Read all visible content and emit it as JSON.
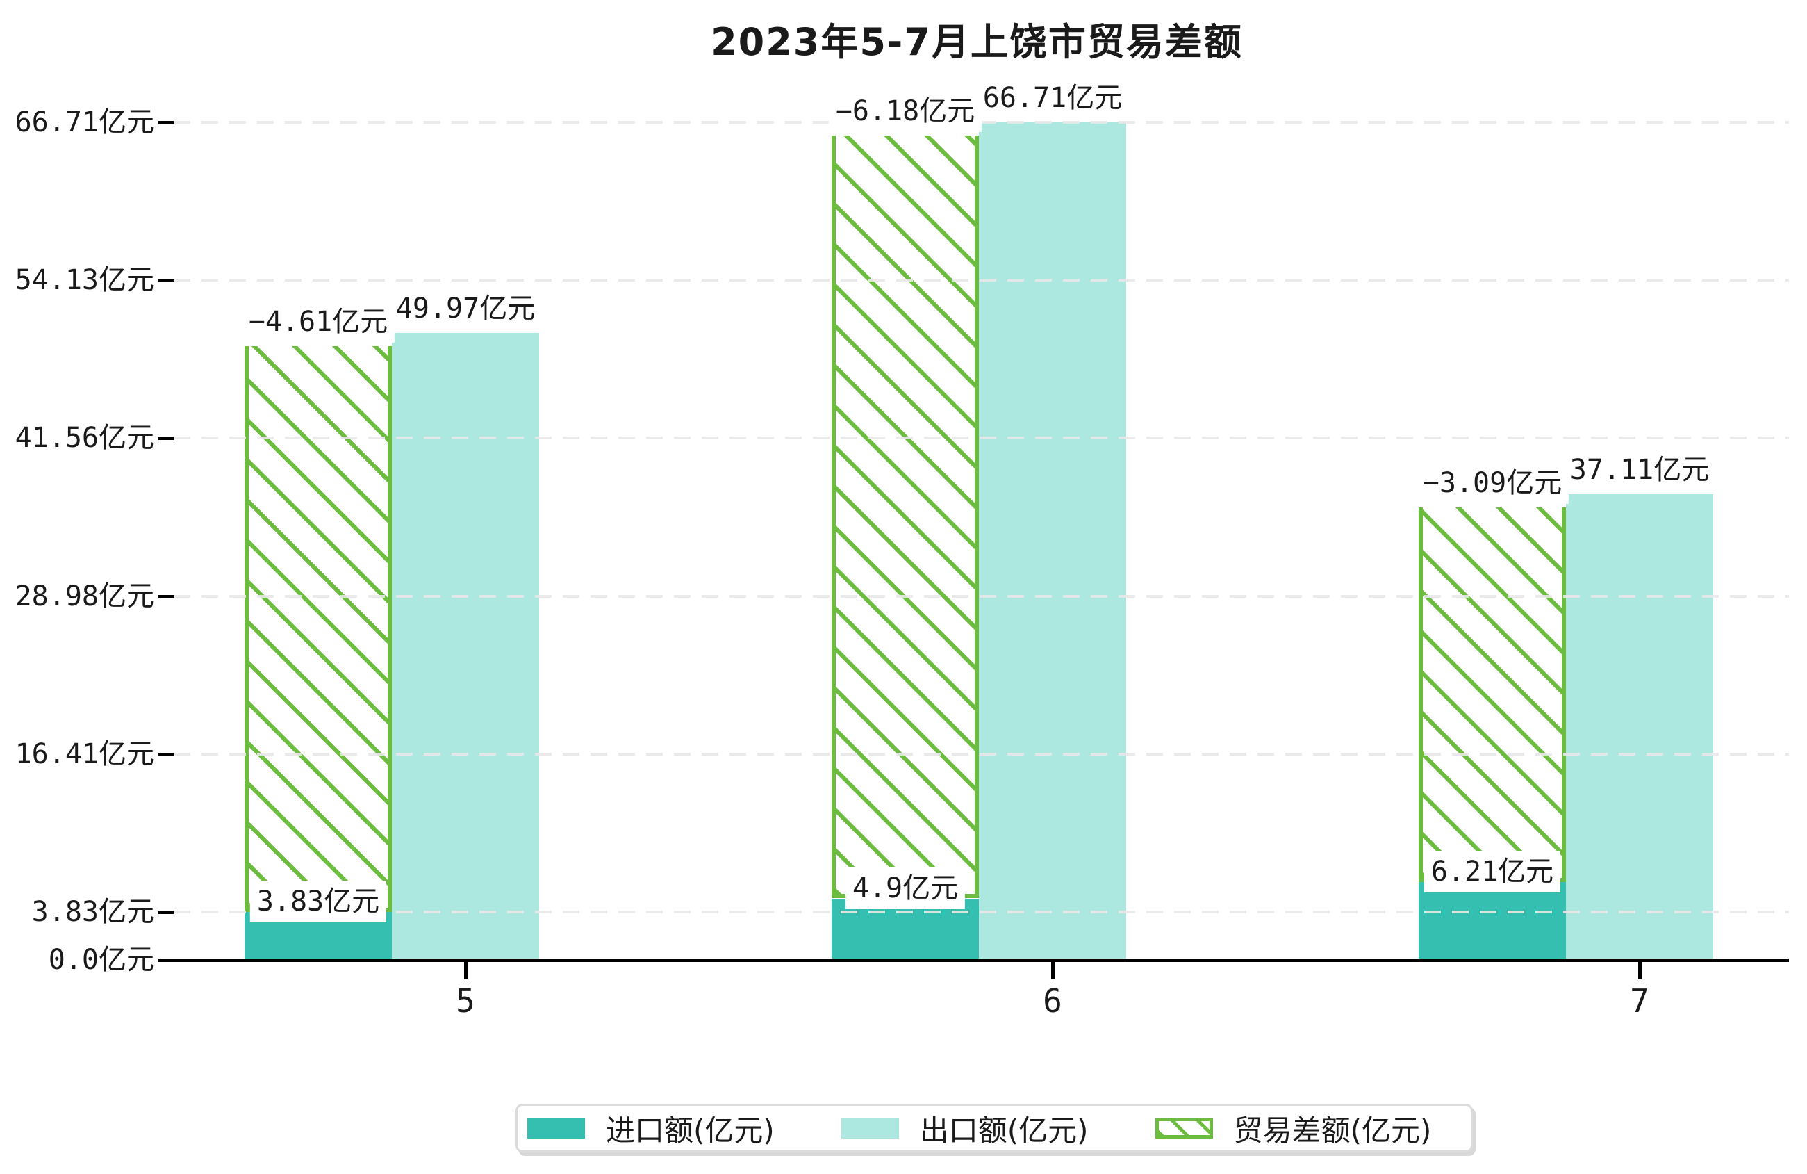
{
  "colors": {
    "import": "#34bfb0",
    "export": "#ace8e0",
    "balance": "#6cbd3f",
    "grid": "#e8e8e8",
    "axis": "#000000",
    "label_text": "#1a1a1a",
    "legend_border": "#dcdcdc"
  },
  "chart_data": {
    "type": "bar",
    "title": "2023年5-7月上饶市贸易差额",
    "categories": [
      "5",
      "6",
      "7"
    ],
    "series": [
      {
        "role": "import",
        "name": "进口额(亿元)",
        "values": [
          3.83,
          4.9,
          6.21
        ],
        "data_labels": [
          "3.83亿元",
          "4.9亿元",
          "6.21亿元"
        ]
      },
      {
        "role": "export",
        "name": "出口额(亿元)",
        "values": [
          49.97,
          66.71,
          37.11
        ],
        "data_labels": [
          "49.97亿元",
          "66.71亿元",
          "37.11亿元"
        ]
      },
      {
        "role": "balance",
        "name": "贸易差额(亿元)",
        "values": [
          -4.61,
          -6.18,
          -3.09
        ],
        "data_labels": [
          "−4.61亿元",
          "−6.18亿元",
          "−3.09亿元"
        ]
      }
    ],
    "y_axis": {
      "range": [
        0,
        66.71
      ],
      "ticks": [
        {
          "value": 0,
          "label": "0.0亿元"
        },
        {
          "value": 3.83,
          "label": "3.83亿元"
        },
        {
          "value": 16.41,
          "label": "16.41亿元"
        },
        {
          "value": 28.98,
          "label": "28.98亿元"
        },
        {
          "value": 41.56,
          "label": "41.56亿元"
        },
        {
          "value": 54.13,
          "label": "54.13亿元"
        },
        {
          "value": 66.71,
          "label": "66.71亿元"
        }
      ]
    },
    "grid": "horizontal-dashed",
    "legend_position": "bottom-center",
    "layout_hints": {
      "balance_bar": "hatched column drawn from top of import bar up to ~1亿 below top of export bar",
      "export_bar_centered_on_tick": true,
      "import_and_balance_bar_left_of_export": true
    }
  }
}
